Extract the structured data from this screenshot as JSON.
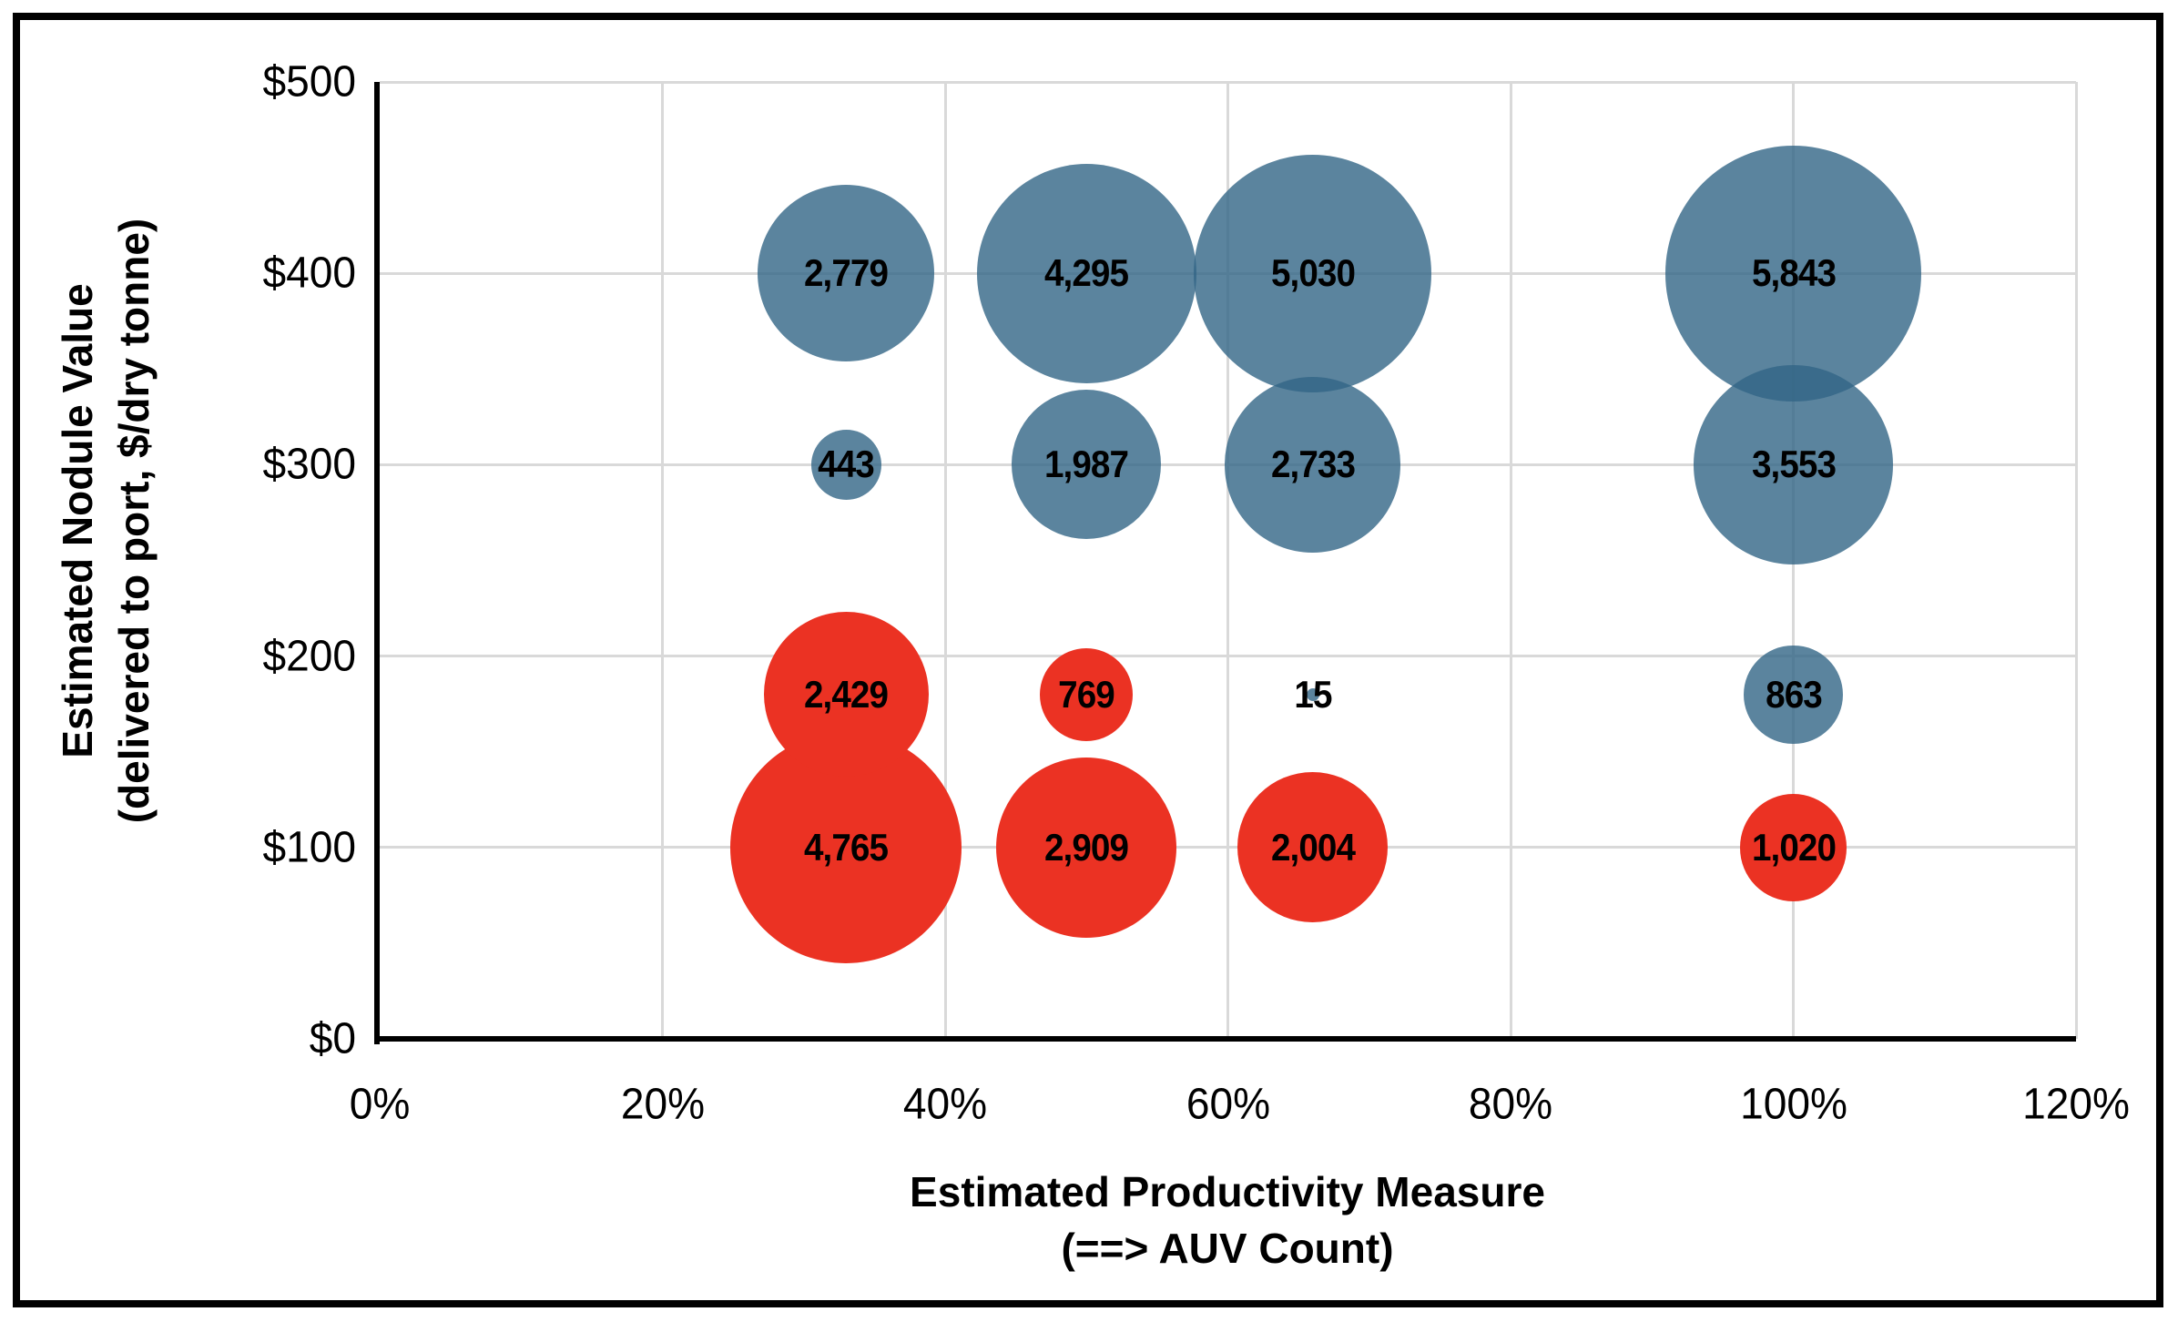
{
  "figure": {
    "background": "#FFFFFF",
    "frame_color": "#000000"
  },
  "chart_data": {
    "type": "scatter",
    "subtype": "bubble",
    "title": "",
    "xlabel": "Estimated Productivity Measure (==> AUV Count)",
    "xlabel_line1": "Estimated Productivity Measure",
    "xlabel_line2": "(==> AUV Count)",
    "ylabel": "Estimated Nodule Value (delivered to port, $/dry tonne)",
    "ylabel_line1": "Estimated Nodule Value",
    "ylabel_line2": "(delivered to port, $/dry tonne)",
    "xlim": [
      0,
      120
    ],
    "ylim": [
      0,
      500
    ],
    "grid": true,
    "gridline_color": "#D9D9D9",
    "axis_color": "#000000",
    "legend_position": "none",
    "x_ticks": [
      {
        "value": 0,
        "label": "0%"
      },
      {
        "value": 20,
        "label": "20%"
      },
      {
        "value": 40,
        "label": "40%"
      },
      {
        "value": 60,
        "label": "60%"
      },
      {
        "value": 80,
        "label": "80%"
      },
      {
        "value": 100,
        "label": "100%"
      },
      {
        "value": 120,
        "label": "120%"
      }
    ],
    "y_ticks": [
      {
        "value": 0,
        "label": "$0"
      },
      {
        "value": 100,
        "label": "$100"
      },
      {
        "value": 200,
        "label": "$200"
      },
      {
        "value": 300,
        "label": "$300"
      },
      {
        "value": 400,
        "label": "$400"
      },
      {
        "value": 500,
        "label": "$500"
      }
    ],
    "series": [
      {
        "name": "blue-bubbles",
        "color": "#326586",
        "fill_opacity": 0.8,
        "points": [
          {
            "x": 33,
            "y": 400,
            "value": 2779,
            "label": "2,779"
          },
          {
            "x": 50,
            "y": 400,
            "value": 4295,
            "label": "4,295"
          },
          {
            "x": 66,
            "y": 400,
            "value": 5030,
            "label": "5,030"
          },
          {
            "x": 100,
            "y": 400,
            "value": 5843,
            "label": "5,843"
          },
          {
            "x": 33,
            "y": 300,
            "value": 443,
            "label": "443"
          },
          {
            "x": 50,
            "y": 300,
            "value": 1987,
            "label": "1,987"
          },
          {
            "x": 66,
            "y": 300,
            "value": 2733,
            "label": "2,733"
          },
          {
            "x": 100,
            "y": 300,
            "value": 3553,
            "label": "3,553"
          },
          {
            "x": 66,
            "y": 180,
            "value": 15,
            "label": "15"
          },
          {
            "x": 100,
            "y": 180,
            "value": 863,
            "label": "863"
          }
        ]
      },
      {
        "name": "red-bubbles",
        "color": "#EB3223",
        "fill_opacity": 1,
        "points": [
          {
            "x": 33,
            "y": 180,
            "value": 2429,
            "label": "2,429"
          },
          {
            "x": 50,
            "y": 180,
            "value": 769,
            "label": "769"
          },
          {
            "x": 33,
            "y": 100,
            "value": 4765,
            "label": "4,765"
          },
          {
            "x": 50,
            "y": 100,
            "value": 2909,
            "label": "2,909"
          },
          {
            "x": 66,
            "y": 100,
            "value": 2004,
            "label": "2,004"
          },
          {
            "x": 100,
            "y": 100,
            "value": 1020,
            "label": "1,020"
          }
        ]
      }
    ],
    "bubble_radius_scale": 1.84
  }
}
